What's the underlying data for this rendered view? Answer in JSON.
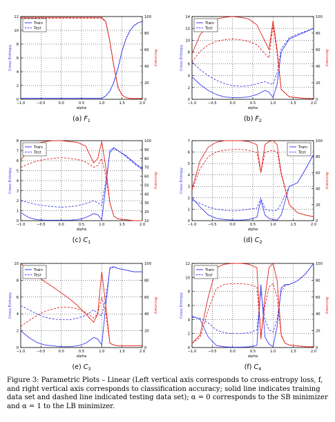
{
  "figure": {
    "caption": "Figure 3: Parametric Plots – Linear (Left vertical axis corresponds to cross-entropy loss, f, and right vertical axis corresponds to classification accuracy; solid line indicates training data set and dashed line indicated testing data set); α = 0 corresponds to the SB minimizer and α = 1 to the LB minimizer."
  },
  "chart_data": [
    {
      "type": "line",
      "subcaption": "(a) F1",
      "xlabel": "alpha",
      "ylabel_left": "Cross Entropy",
      "ylabel_right": "Accuracy",
      "xlim": [
        -1.0,
        2.0
      ],
      "ylim_left": [
        0,
        12
      ],
      "ylim_right": [
        0,
        100
      ],
      "yticks_left": [
        0,
        2,
        4,
        6,
        8,
        10,
        12
      ],
      "yticks_right": [
        0,
        20,
        40,
        60,
        80,
        100
      ],
      "legend": [
        "Train",
        "Test"
      ],
      "legend_position": "top-left",
      "grid": true,
      "x": [
        -1.0,
        -0.8,
        -0.6,
        -0.4,
        -0.2,
        0.0,
        0.2,
        0.4,
        0.6,
        0.8,
        1.0,
        1.1,
        1.2,
        1.3,
        1.4,
        1.5,
        1.6,
        1.7,
        1.8,
        1.9,
        2.0
      ],
      "series": [
        {
          "name": "Train",
          "axis": "left",
          "style": "solid",
          "values": [
            0.15,
            0.15,
            0.15,
            0.15,
            0.15,
            0.15,
            0.15,
            0.15,
            0.15,
            0.15,
            0.15,
            0.5,
            1.2,
            2.5,
            4.5,
            7.0,
            8.8,
            10.0,
            10.7,
            11.1,
            11.3
          ]
        },
        {
          "name": "Test",
          "axis": "left",
          "style": "dashed",
          "values": [
            0.15,
            0.15,
            0.15,
            0.15,
            0.15,
            0.15,
            0.15,
            0.15,
            0.15,
            0.15,
            0.15,
            0.5,
            1.2,
            2.5,
            4.5,
            7.0,
            8.8,
            10.0,
            10.7,
            11.1,
            11.3
          ]
        },
        {
          "name": "Train",
          "axis": "right",
          "style": "solid",
          "values": [
            99,
            99,
            99,
            99,
            99,
            99,
            99,
            99,
            99,
            99,
            99,
            94,
            70,
            40,
            15,
            5,
            2,
            1,
            1,
            1,
            1
          ]
        },
        {
          "name": "Test",
          "axis": "right",
          "style": "dashed",
          "values": [
            98,
            98,
            98,
            98,
            98,
            98,
            98,
            98,
            98,
            98,
            98,
            93,
            69,
            39,
            14,
            5,
            2,
            1,
            1,
            1,
            1
          ]
        }
      ]
    },
    {
      "type": "line",
      "subcaption": "(b) F2",
      "xlabel": "alpha",
      "ylabel_left": "Cross Entropy",
      "ylabel_right": "Accuracy",
      "xlim": [
        -1.0,
        2.0
      ],
      "ylim_left": [
        0,
        14
      ],
      "ylim_right": [
        0,
        100
      ],
      "yticks_left": [
        0,
        2,
        4,
        6,
        8,
        10,
        12,
        14
      ],
      "yticks_right": [
        0,
        20,
        40,
        60,
        80,
        100
      ],
      "legend": [
        "Train",
        "Test"
      ],
      "legend_position": "top-left",
      "grid": true,
      "x": [
        -1.0,
        -0.8,
        -0.6,
        -0.4,
        -0.2,
        0.0,
        0.2,
        0.4,
        0.6,
        0.8,
        0.9,
        1.0,
        1.1,
        1.2,
        1.4,
        1.6,
        1.8,
        2.0
      ],
      "series": [
        {
          "name": "Train",
          "axis": "left",
          "style": "solid",
          "values": [
            3.8,
            2.5,
            1.5,
            0.8,
            0.4,
            0.3,
            0.3,
            0.4,
            0.8,
            1.5,
            1.2,
            0.3,
            2.5,
            8.0,
            10.2,
            10.8,
            11.4,
            12.0
          ]
        },
        {
          "name": "Test",
          "axis": "left",
          "style": "dashed",
          "values": [
            6.3,
            5.0,
            4.0,
            3.2,
            2.7,
            2.3,
            2.2,
            2.3,
            2.6,
            3.0,
            2.7,
            2.5,
            4.5,
            8.5,
            10.4,
            11.0,
            11.5,
            12.0
          ]
        },
        {
          "name": "Train",
          "axis": "right",
          "style": "solid",
          "values": [
            55,
            78,
            90,
            97,
            99,
            100,
            99,
            97,
            90,
            70,
            60,
            95,
            60,
            12,
            3,
            2,
            1,
            1
          ]
        },
        {
          "name": "Test",
          "axis": "right",
          "style": "dashed",
          "values": [
            45,
            58,
            66,
            70,
            72,
            73,
            72,
            70,
            66,
            55,
            50,
            90,
            55,
            12,
            3,
            2,
            1,
            1
          ]
        }
      ]
    },
    {
      "type": "line",
      "subcaption": "(c) C1",
      "xlabel": "alpha",
      "ylabel_left": "Cross Entropy",
      "ylabel_right": "Accuracy",
      "xlim": [
        -1.0,
        2.0
      ],
      "ylim_left": [
        0,
        8
      ],
      "ylim_right": [
        10,
        100
      ],
      "yticks_left": [
        0,
        1,
        2,
        3,
        4,
        5,
        6,
        7,
        8
      ],
      "yticks_right": [
        10,
        20,
        30,
        40,
        50,
        60,
        70,
        80,
        90,
        100
      ],
      "legend": [
        "Train",
        "Test"
      ],
      "legend_position": "top-left",
      "grid": true,
      "x": [
        -1.0,
        -0.8,
        -0.6,
        -0.4,
        -0.2,
        0.0,
        0.2,
        0.4,
        0.6,
        0.8,
        0.9,
        1.0,
        1.1,
        1.2,
        1.3,
        1.4,
        1.6,
        1.8,
        2.0
      ],
      "series": [
        {
          "name": "Train",
          "axis": "left",
          "style": "solid",
          "values": [
            0.8,
            0.3,
            0.1,
            0.05,
            0.05,
            0.05,
            0.05,
            0.1,
            0.3,
            0.7,
            0.6,
            0.1,
            3.5,
            7.0,
            7.3,
            7.0,
            6.5,
            5.8,
            5.2
          ]
        },
        {
          "name": "Test",
          "axis": "left",
          "style": "dashed",
          "values": [
            2.0,
            1.8,
            1.6,
            1.5,
            1.4,
            1.35,
            1.4,
            1.5,
            1.7,
            2.0,
            1.8,
            1.5,
            4.0,
            6.8,
            7.2,
            7.0,
            6.4,
            5.7,
            5.1
          ]
        },
        {
          "name": "Train",
          "axis": "right",
          "style": "solid",
          "values": [
            78,
            90,
            97,
            99,
            100,
            100,
            99,
            98,
            94,
            75,
            80,
            99,
            70,
            30,
            15,
            12,
            11,
            10,
            10
          ]
        },
        {
          "name": "Test",
          "axis": "right",
          "style": "dashed",
          "values": [
            70,
            74,
            77,
            79,
            80,
            81,
            80,
            79,
            76,
            70,
            72,
            80,
            60,
            30,
            15,
            12,
            11,
            10,
            10
          ]
        }
      ]
    },
    {
      "type": "line",
      "subcaption": "(d) C2",
      "xlabel": "alpha",
      "ylabel_left": "Cross Entropy",
      "ylabel_right": "Accuracy",
      "xlim": [
        -1.0,
        2.0
      ],
      "ylim_left": [
        0,
        7
      ],
      "ylim_right": [
        0,
        100
      ],
      "yticks_left": [
        0,
        1,
        2,
        3,
        4,
        5,
        6,
        7
      ],
      "yticks_right": [
        0,
        20,
        40,
        60,
        80,
        100
      ],
      "legend": [
        "Train",
        "Test"
      ],
      "legend_position": "top-right",
      "grid": true,
      "x": [
        -1.0,
        -0.8,
        -0.6,
        -0.4,
        -0.2,
        0.0,
        0.2,
        0.4,
        0.6,
        0.7,
        0.8,
        0.9,
        1.0,
        1.1,
        1.2,
        1.4,
        1.6,
        1.8,
        2.0
      ],
      "series": [
        {
          "name": "Train",
          "axis": "left",
          "style": "solid",
          "values": [
            2.0,
            1.2,
            0.5,
            0.2,
            0.1,
            0.05,
            0.05,
            0.1,
            0.3,
            1.8,
            0.5,
            0.2,
            0.1,
            0.05,
            0.5,
            3.0,
            3.3,
            4.5,
            5.8
          ]
        },
        {
          "name": "Test",
          "axis": "left",
          "style": "dashed",
          "values": [
            1.8,
            1.5,
            1.2,
            1.0,
            0.9,
            0.85,
            0.9,
            1.0,
            1.1,
            2.0,
            1.0,
            0.9,
            0.85,
            0.9,
            1.5,
            3.0,
            3.3,
            4.5,
            5.8
          ]
        },
        {
          "name": "Train",
          "axis": "right",
          "style": "solid",
          "values": [
            40,
            75,
            92,
            98,
            100,
            100,
            100,
            99,
            95,
            60,
            95,
            99,
            100,
            95,
            60,
            20,
            10,
            7,
            5
          ]
        },
        {
          "name": "Test",
          "axis": "right",
          "style": "dashed",
          "values": [
            38,
            65,
            80,
            86,
            88,
            89,
            89,
            88,
            85,
            60,
            85,
            87,
            88,
            85,
            58,
            20,
            10,
            7,
            5
          ]
        }
      ]
    },
    {
      "type": "line",
      "subcaption": "(e) C3",
      "xlabel": "alpha",
      "ylabel_left": "Cross Entropy",
      "ylabel_right": "Accuracy",
      "xlim": [
        -1.0,
        2.0
      ],
      "ylim_left": [
        0,
        10
      ],
      "ylim_right": [
        0,
        100
      ],
      "yticks_left": [
        0,
        2,
        4,
        6,
        8,
        10
      ],
      "yticks_right": [
        0,
        20,
        40,
        60,
        80,
        100
      ],
      "legend": [
        "Train",
        "Test"
      ],
      "legend_position": "top-left",
      "grid": true,
      "x": [
        -1.0,
        -0.8,
        -0.6,
        -0.4,
        -0.2,
        0.0,
        0.2,
        0.4,
        0.6,
        0.8,
        0.9,
        1.0,
        1.1,
        1.2,
        1.3,
        1.4,
        1.6,
        1.8,
        2.0
      ],
      "series": [
        {
          "name": "Train",
          "axis": "left",
          "style": "solid",
          "values": [
            2.0,
            1.2,
            0.6,
            0.3,
            0.2,
            0.1,
            0.1,
            0.2,
            0.5,
            1.2,
            1.0,
            0.3,
            5.0,
            9.5,
            9.6,
            9.4,
            9.2,
            9.0,
            9.0
          ]
        },
        {
          "name": "Test",
          "axis": "left",
          "style": "dashed",
          "values": [
            5.0,
            4.5,
            4.0,
            3.6,
            3.4,
            3.3,
            3.3,
            3.5,
            3.8,
            4.5,
            4.0,
            3.8,
            6.0,
            9.3,
            9.6,
            9.4,
            9.2,
            9.0,
            9.0
          ]
        },
        {
          "name": "Train",
          "axis": "right",
          "style": "solid",
          "values": [
            100,
            92,
            85,
            78,
            72,
            65,
            58,
            50,
            40,
            30,
            40,
            90,
            50,
            5,
            3,
            2,
            2,
            2,
            2
          ]
        },
        {
          "name": "Test",
          "axis": "right",
          "style": "dashed",
          "values": [
            25,
            32,
            38,
            43,
            46,
            48,
            48,
            46,
            42,
            35,
            40,
            60,
            40,
            5,
            3,
            2,
            2,
            2,
            2
          ]
        }
      ]
    },
    {
      "type": "line",
      "subcaption": "(f) C4",
      "xlabel": "alpha",
      "ylabel_left": "Cross Entropy",
      "ylabel_right": "Accuracy",
      "xlim": [
        -1.0,
        2.0
      ],
      "ylim_left": [
        0,
        12
      ],
      "ylim_right": [
        0,
        100
      ],
      "yticks_left": [
        0,
        2,
        4,
        6,
        8,
        10,
        12
      ],
      "yticks_right": [
        0,
        20,
        40,
        60,
        80,
        100
      ],
      "legend": [
        "Train",
        "Test"
      ],
      "legend_position": "top-left",
      "grid": true,
      "x": [
        -1.0,
        -0.8,
        -0.6,
        -0.4,
        -0.2,
        0.0,
        0.2,
        0.4,
        0.6,
        0.7,
        0.8,
        0.9,
        1.0,
        1.1,
        1.2,
        1.3,
        1.4,
        1.6,
        1.8,
        2.0
      ],
      "series": [
        {
          "name": "Train",
          "axis": "left",
          "style": "solid",
          "values": [
            4.5,
            4.0,
            1.5,
            0.3,
            0.1,
            0.05,
            0.05,
            0.1,
            0.3,
            9.0,
            1.5,
            0.5,
            0.1,
            3.0,
            8.5,
            9.0,
            9.0,
            9.5,
            10.5,
            12.0
          ]
        },
        {
          "name": "Test",
          "axis": "left",
          "style": "dashed",
          "values": [
            4.3,
            4.2,
            3.5,
            2.5,
            2.1,
            2.0,
            2.0,
            2.1,
            2.5,
            8.0,
            4.0,
            2.5,
            2.2,
            4.0,
            8.0,
            8.8,
            9.0,
            9.5,
            10.5,
            12.0
          ]
        },
        {
          "name": "Train",
          "axis": "right",
          "style": "solid",
          "values": [
            5,
            15,
            60,
            95,
            99,
            100,
            100,
            99,
            95,
            10,
            60,
            95,
            100,
            80,
            15,
            5,
            3,
            2,
            1,
            1
          ]
        },
        {
          "name": "Test",
          "axis": "right",
          "style": "dashed",
          "values": [
            5,
            12,
            45,
            70,
            75,
            76,
            76,
            75,
            72,
            15,
            50,
            72,
            76,
            60,
            14,
            5,
            3,
            2,
            1,
            1
          ]
        }
      ]
    }
  ]
}
